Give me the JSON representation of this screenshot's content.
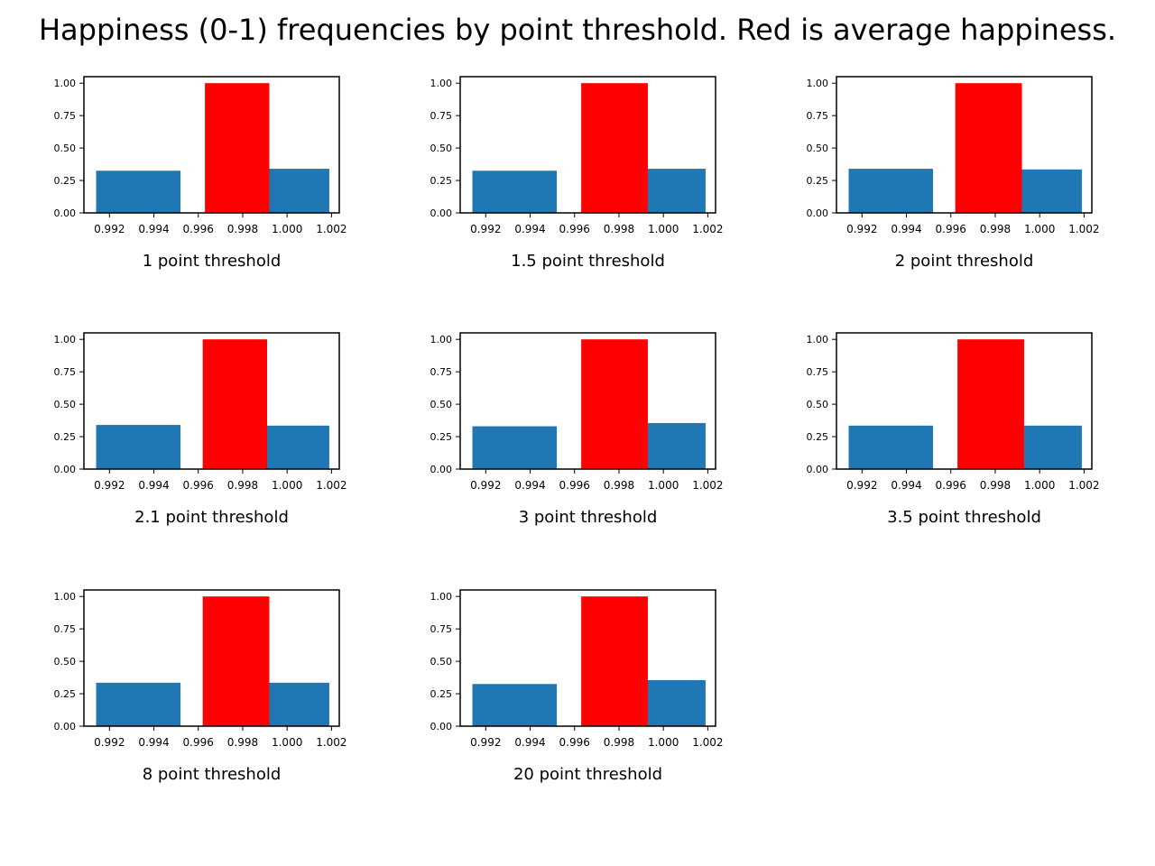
{
  "figure": {
    "title": "Happiness (0-1) frequencies by point threshold. Red is average happiness."
  },
  "colors": {
    "histogram": "#1f77b4",
    "average": "#ff0000",
    "axes": "#000000",
    "background": "#ffffff"
  },
  "chart_data": [
    {
      "type": "bar",
      "xlabel": "1 point threshold",
      "xlim": [
        0.99085,
        1.00235
      ],
      "ylim": [
        0,
        1.05
      ],
      "xticks": [
        0.992,
        0.994,
        0.996,
        0.998,
        1.0,
        1.002
      ],
      "xtick_labels": [
        "0.992",
        "0.994",
        "0.996",
        "0.998",
        "1.000",
        "1.002"
      ],
      "yticks": [
        0,
        0.25,
        0.5,
        0.75,
        1.0
      ],
      "ytick_labels": [
        "0.00",
        "0.25",
        "0.50",
        "0.75",
        "1.00"
      ],
      "grid": false,
      "series": [
        {
          "bars": [
            {
              "x0": 0.9914,
              "x1": 0.9952,
              "value": 0.325
            },
            {
              "x0": 0.9992,
              "x1": 1.0019,
              "value": 0.34
            }
          ]
        },
        {
          "bars": [
            {
              "x0": 0.9963,
              "x1": 0.9992,
              "value": 1.0
            }
          ]
        }
      ]
    },
    {
      "type": "bar",
      "xlabel": "1.5 point threshold",
      "xlim": [
        0.99085,
        1.00235
      ],
      "ylim": [
        0,
        1.05
      ],
      "xticks": [
        0.992,
        0.994,
        0.996,
        0.998,
        1.0,
        1.002
      ],
      "xtick_labels": [
        "0.992",
        "0.994",
        "0.996",
        "0.998",
        "1.000",
        "1.002"
      ],
      "yticks": [
        0,
        0.25,
        0.5,
        0.75,
        1.0
      ],
      "ytick_labels": [
        "0.00",
        "0.25",
        "0.50",
        "0.75",
        "1.00"
      ],
      "grid": false,
      "series": [
        {
          "bars": [
            {
              "x0": 0.9914,
              "x1": 0.9952,
              "value": 0.325
            },
            {
              "x0": 0.9993,
              "x1": 1.0019,
              "value": 0.34
            }
          ]
        },
        {
          "bars": [
            {
              "x0": 0.9963,
              "x1": 0.9993,
              "value": 1.0
            }
          ]
        }
      ]
    },
    {
      "type": "bar",
      "xlabel": "2 point threshold",
      "xlim": [
        0.99085,
        1.00235
      ],
      "ylim": [
        0,
        1.05
      ],
      "xticks": [
        0.992,
        0.994,
        0.996,
        0.998,
        1.0,
        1.002
      ],
      "xtick_labels": [
        "0.992",
        "0.994",
        "0.996",
        "0.998",
        "1.000",
        "1.002"
      ],
      "yticks": [
        0,
        0.25,
        0.5,
        0.75,
        1.0
      ],
      "ytick_labels": [
        "0.00",
        "0.25",
        "0.50",
        "0.75",
        "1.00"
      ],
      "grid": false,
      "series": [
        {
          "bars": [
            {
              "x0": 0.9914,
              "x1": 0.9952,
              "value": 0.34
            },
            {
              "x0": 0.9992,
              "x1": 1.0019,
              "value": 0.335
            }
          ]
        },
        {
          "bars": [
            {
              "x0": 0.9962,
              "x1": 0.9992,
              "value": 1.0
            }
          ]
        }
      ]
    },
    {
      "type": "bar",
      "xlabel": "2.1 point threshold",
      "xlim": [
        0.99085,
        1.00235
      ],
      "ylim": [
        0,
        1.05
      ],
      "xticks": [
        0.992,
        0.994,
        0.996,
        0.998,
        1.0,
        1.002
      ],
      "xtick_labels": [
        "0.992",
        "0.994",
        "0.996",
        "0.998",
        "1.000",
        "1.002"
      ],
      "yticks": [
        0,
        0.25,
        0.5,
        0.75,
        1.0
      ],
      "ytick_labels": [
        "0.00",
        "0.25",
        "0.50",
        "0.75",
        "1.00"
      ],
      "grid": false,
      "series": [
        {
          "bars": [
            {
              "x0": 0.9914,
              "x1": 0.9952,
              "value": 0.34
            },
            {
              "x0": 0.9991,
              "x1": 1.0019,
              "value": 0.335
            }
          ]
        },
        {
          "bars": [
            {
              "x0": 0.9962,
              "x1": 0.9991,
              "value": 1.0
            }
          ]
        }
      ]
    },
    {
      "type": "bar",
      "xlabel": "3 point threshold",
      "xlim": [
        0.99085,
        1.00235
      ],
      "ylim": [
        0,
        1.05
      ],
      "xticks": [
        0.992,
        0.994,
        0.996,
        0.998,
        1.0,
        1.002
      ],
      "xtick_labels": [
        "0.992",
        "0.994",
        "0.996",
        "0.998",
        "1.000",
        "1.002"
      ],
      "yticks": [
        0,
        0.25,
        0.5,
        0.75,
        1.0
      ],
      "ytick_labels": [
        "0.00",
        "0.25",
        "0.50",
        "0.75",
        "1.00"
      ],
      "grid": false,
      "series": [
        {
          "bars": [
            {
              "x0": 0.9914,
              "x1": 0.9952,
              "value": 0.33
            },
            {
              "x0": 0.9993,
              "x1": 1.0019,
              "value": 0.355
            }
          ]
        },
        {
          "bars": [
            {
              "x0": 0.9963,
              "x1": 0.9993,
              "value": 1.0
            }
          ]
        }
      ]
    },
    {
      "type": "bar",
      "xlabel": "3.5 point threshold",
      "xlim": [
        0.99085,
        1.00235
      ],
      "ylim": [
        0,
        1.05
      ],
      "xticks": [
        0.992,
        0.994,
        0.996,
        0.998,
        1.0,
        1.002
      ],
      "xtick_labels": [
        "0.992",
        "0.994",
        "0.996",
        "0.998",
        "1.000",
        "1.002"
      ],
      "yticks": [
        0,
        0.25,
        0.5,
        0.75,
        1.0
      ],
      "ytick_labels": [
        "0.00",
        "0.25",
        "0.50",
        "0.75",
        "1.00"
      ],
      "grid": false,
      "series": [
        {
          "bars": [
            {
              "x0": 0.9914,
              "x1": 0.9952,
              "value": 0.335
            },
            {
              "x0": 0.9993,
              "x1": 1.0019,
              "value": 0.335
            }
          ]
        },
        {
          "bars": [
            {
              "x0": 0.9963,
              "x1": 0.9993,
              "value": 1.0
            }
          ]
        }
      ]
    },
    {
      "type": "bar",
      "xlabel": "8 point threshold",
      "xlim": [
        0.99085,
        1.00235
      ],
      "ylim": [
        0,
        1.05
      ],
      "xticks": [
        0.992,
        0.994,
        0.996,
        0.998,
        1.0,
        1.002
      ],
      "xtick_labels": [
        "0.992",
        "0.994",
        "0.996",
        "0.998",
        "1.000",
        "1.002"
      ],
      "yticks": [
        0,
        0.25,
        0.5,
        0.75,
        1.0
      ],
      "ytick_labels": [
        "0.00",
        "0.25",
        "0.50",
        "0.75",
        "1.00"
      ],
      "grid": false,
      "series": [
        {
          "bars": [
            {
              "x0": 0.9914,
              "x1": 0.9952,
              "value": 0.335
            },
            {
              "x0": 0.9992,
              "x1": 1.0019,
              "value": 0.335
            }
          ]
        },
        {
          "bars": [
            {
              "x0": 0.9962,
              "x1": 0.9992,
              "value": 1.0
            }
          ]
        }
      ]
    },
    {
      "type": "bar",
      "xlabel": "20 point threshold",
      "xlim": [
        0.99085,
        1.00235
      ],
      "ylim": [
        0,
        1.05
      ],
      "xticks": [
        0.992,
        0.994,
        0.996,
        0.998,
        1.0,
        1.002
      ],
      "xtick_labels": [
        "0.992",
        "0.994",
        "0.996",
        "0.998",
        "1.000",
        "1.002"
      ],
      "yticks": [
        0,
        0.25,
        0.5,
        0.75,
        1.0
      ],
      "ytick_labels": [
        "0.00",
        "0.25",
        "0.50",
        "0.75",
        "1.00"
      ],
      "grid": false,
      "series": [
        {
          "bars": [
            {
              "x0": 0.9914,
              "x1": 0.9952,
              "value": 0.325
            },
            {
              "x0": 0.9993,
              "x1": 1.0019,
              "value": 0.355
            }
          ]
        },
        {
          "bars": [
            {
              "x0": 0.9963,
              "x1": 0.9993,
              "value": 1.0
            }
          ]
        }
      ]
    }
  ]
}
